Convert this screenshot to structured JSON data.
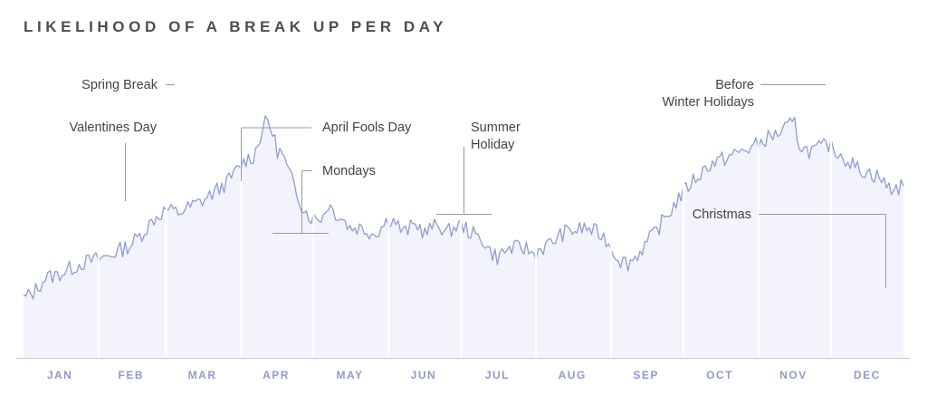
{
  "chart_data": {
    "type": "area",
    "title": "LIKELIHOOD OF A BREAK UP PER DAY",
    "xlabel": "",
    "ylabel": "",
    "x_axis_months": [
      "JAN",
      "FEB",
      "MAR",
      "APR",
      "MAY",
      "JUN",
      "JUL",
      "AUG",
      "SEP",
      "OCT",
      "NOV",
      "DEC"
    ],
    "ylim": [
      0,
      100
    ],
    "grid": false,
    "legend": "none",
    "colors": {
      "line": "#8f9bd4",
      "fill": "#f3f4fb",
      "divider": "#ffffff",
      "axis": "#c3c8e3",
      "month_text": "#8f9bc9",
      "annotation_text": "#444444",
      "leader": "#9a9a9a",
      "title": "#4d4d4d"
    },
    "series": [
      {
        "points": [
          [
            1,
            20
          ],
          [
            5,
            22
          ],
          [
            10,
            27
          ],
          [
            15,
            28
          ],
          [
            20,
            30
          ],
          [
            25,
            32
          ],
          [
            30,
            33
          ],
          [
            35,
            34
          ],
          [
            40,
            36
          ],
          [
            45,
            38
          ],
          [
            50,
            42
          ],
          [
            55,
            47
          ],
          [
            60,
            50
          ],
          [
            65,
            49
          ],
          [
            70,
            51
          ],
          [
            75,
            53
          ],
          [
            80,
            56
          ],
          [
            85,
            59
          ],
          [
            90,
            64
          ],
          [
            93,
            67
          ],
          [
            96,
            68
          ],
          [
            98,
            72
          ],
          [
            100,
            78
          ],
          [
            102,
            80
          ],
          [
            104,
            76
          ],
          [
            106,
            70
          ],
          [
            108,
            69
          ],
          [
            110,
            64
          ],
          [
            113,
            58
          ],
          [
            116,
            52
          ],
          [
            119,
            48
          ],
          [
            122,
            47
          ],
          [
            125,
            48
          ],
          [
            127,
            52
          ],
          [
            130,
            49
          ],
          [
            133,
            47
          ],
          [
            136,
            44
          ],
          [
            140,
            44
          ],
          [
            143,
            43
          ],
          [
            146,
            42
          ],
          [
            149,
            44
          ],
          [
            152,
            47
          ],
          [
            155,
            46
          ],
          [
            158,
            42
          ],
          [
            161,
            44
          ],
          [
            164,
            45
          ],
          [
            167,
            42
          ],
          [
            170,
            44
          ],
          [
            173,
            45
          ],
          [
            176,
            42
          ],
          [
            179,
            44
          ],
          [
            182,
            45
          ],
          [
            185,
            43
          ],
          [
            188,
            41
          ],
          [
            191,
            40
          ],
          [
            194,
            36
          ],
          [
            197,
            34
          ],
          [
            200,
            36
          ],
          [
            203,
            37
          ],
          [
            206,
            37
          ],
          [
            209,
            37
          ],
          [
            212,
            35
          ],
          [
            215,
            37
          ],
          [
            218,
            38
          ],
          [
            221,
            40
          ],
          [
            224,
            42
          ],
          [
            227,
            43
          ],
          [
            230,
            43
          ],
          [
            233,
            44
          ],
          [
            236,
            43
          ],
          [
            239,
            42
          ],
          [
            242,
            40
          ],
          [
            245,
            36
          ],
          [
            248,
            33
          ],
          [
            251,
            32
          ],
          [
            254,
            34
          ],
          [
            257,
            37
          ],
          [
            260,
            40
          ],
          [
            263,
            43
          ],
          [
            266,
            47
          ],
          [
            269,
            50
          ],
          [
            272,
            54
          ],
          [
            275,
            57
          ],
          [
            278,
            60
          ],
          [
            281,
            62
          ],
          [
            284,
            65
          ],
          [
            287,
            66
          ],
          [
            290,
            67
          ],
          [
            293,
            68
          ],
          [
            296,
            69
          ],
          [
            299,
            70
          ],
          [
            302,
            71
          ],
          [
            305,
            72
          ],
          [
            308,
            74
          ],
          [
            311,
            75
          ],
          [
            314,
            76
          ],
          [
            317,
            78
          ],
          [
            320,
            79
          ],
          [
            322,
            72
          ],
          [
            325,
            70
          ],
          [
            328,
            70
          ],
          [
            331,
            71
          ],
          [
            334,
            72
          ],
          [
            337,
            70
          ],
          [
            340,
            68
          ],
          [
            343,
            66
          ],
          [
            346,
            64
          ],
          [
            349,
            63
          ],
          [
            352,
            62
          ],
          [
            355,
            61
          ],
          [
            358,
            58
          ],
          [
            361,
            57
          ],
          [
            365,
            58
          ]
        ]
      }
    ],
    "annotations": [
      {
        "label": "Spring Break",
        "day": 62
      },
      {
        "label": "Valentines Day",
        "day": 45
      },
      {
        "label": "April Fools Day",
        "day": 91
      },
      {
        "label": "Mondays",
        "day": 120
      },
      {
        "label": "Summer Holiday",
        "day": 185
      },
      {
        "label": "Before Winter Holidays",
        "day": 335
      },
      {
        "label": "Christmas",
        "day": 359
      }
    ]
  }
}
